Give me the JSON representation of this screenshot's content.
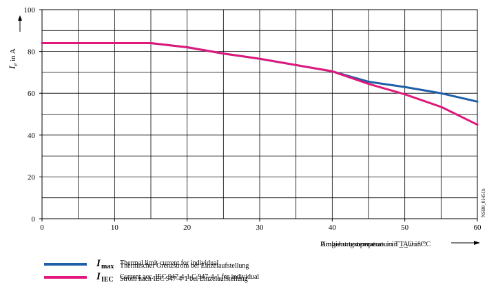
{
  "chart_data": {
    "type": "line",
    "xlabel": "Ambient temperature in T_A in °C",
    "xlabel_overlay": "Umgebungstemperatur in T_U in °C",
    "ylabel_symbol": "I",
    "ylabel_sub": "e",
    "ylabel_rest": " in A",
    "xlim": [
      0,
      60
    ],
    "ylim": [
      0,
      100
    ],
    "x_ticks": [
      0,
      10,
      20,
      30,
      40,
      50,
      60
    ],
    "y_ticks": [
      0,
      20,
      40,
      60,
      80,
      100
    ],
    "x_gridlines": [
      5,
      10,
      15,
      20,
      25,
      30,
      35,
      40,
      45,
      50,
      55
    ],
    "y_gridlines": [
      10,
      20,
      30,
      40,
      50,
      60,
      70,
      80,
      90
    ],
    "grid": true,
    "series": [
      {
        "name": "I_max Thermal limit current for individual / Thermischer Grenzstrom bei Einzelaufstellung",
        "color": "#1f5fa8",
        "x": [
          0,
          5,
          10,
          15,
          20,
          25,
          30,
          35,
          40,
          45,
          50,
          55,
          60
        ],
        "y": [
          84,
          84,
          84,
          84,
          82,
          79,
          76.5,
          73.5,
          70.5,
          65.5,
          63,
          60,
          56
        ]
      },
      {
        "name": "I_IEC Current acc. IEC 947-4-1 C 947-4-1 for individual / Strom nach IEC 947-4-1 bei Einzelaufstellung",
        "color": "#e0187b",
        "x": [
          0,
          5,
          10,
          15,
          20,
          25,
          30,
          35,
          40,
          45,
          50,
          55,
          60
        ],
        "y": [
          84,
          84,
          84,
          84,
          82,
          79,
          76.5,
          73.5,
          70.5,
          64.5,
          59.5,
          53.5,
          45
        ]
      }
    ],
    "watermark": "NSB0_01451b"
  },
  "legend": {
    "items": [
      {
        "symbol": "I",
        "sub": "max",
        "text_a": "Thermal limit current for individual",
        "text_b": "Thermischer Grenzstrom bei Einzelaufstellung",
        "color": "#1f5fa8"
      },
      {
        "symbol": "I",
        "sub": "IEC",
        "text_a": "Current acc. IEC 947-4-1 C 947-4-1 for individual",
        "text_b": "Strom nach IEC 947-4-1 bei Einzelaufstellung",
        "color": "#e0187b"
      }
    ]
  }
}
